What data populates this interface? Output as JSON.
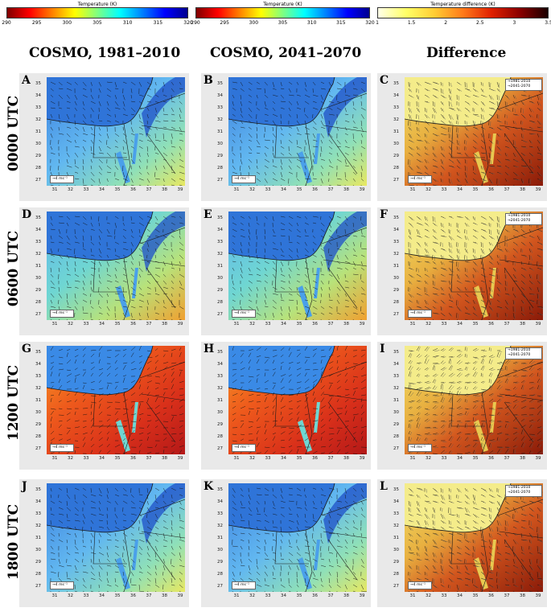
{
  "colorbars": [
    {
      "title": "Temperature (K)",
      "ticks": [
        "290",
        "295",
        "300",
        "305",
        "310",
        "315",
        "320"
      ],
      "palette": "jet"
    },
    {
      "title": "Temperature (K)",
      "ticks": [
        "290",
        "295",
        "300",
        "305",
        "310",
        "315",
        "320"
      ],
      "palette": "jet"
    },
    {
      "title": "Temperature difference (K)",
      "ticks": [
        "1",
        "1.5",
        "2",
        "2.5",
        "3",
        "3.5"
      ],
      "palette": "hot"
    }
  ],
  "columns": [
    {
      "title": "COSMO, 1981–2010"
    },
    {
      "title": "COSMO, 2041–2070"
    },
    {
      "title": "Difference"
    }
  ],
  "rows": [
    {
      "title": "0000 UTC"
    },
    {
      "title": "0600 UTC"
    },
    {
      "title": "1200 UTC"
    },
    {
      "title": "1800 UTC"
    }
  ],
  "panels": [
    {
      "label": "A"
    },
    {
      "label": "B"
    },
    {
      "label": "C"
    },
    {
      "label": "D"
    },
    {
      "label": "E"
    },
    {
      "label": "F"
    },
    {
      "label": "G"
    },
    {
      "label": "H"
    },
    {
      "label": "I"
    },
    {
      "label": "J"
    },
    {
      "label": "K"
    },
    {
      "label": "L"
    }
  ],
  "lat_labels": [
    "35",
    "34",
    "33",
    "32",
    "31",
    "30",
    "29",
    "28",
    "27"
  ],
  "lon_labels": [
    "31",
    "32",
    "33",
    "34",
    "35",
    "36",
    "37",
    "38",
    "39"
  ],
  "scale_label": "→4 ms⁻¹",
  "legend_labels": [
    "1981-2010",
    "2041-2070"
  ],
  "colors": {
    "sea_night": "#2f74d8",
    "sea_day": "#3a8ae6",
    "border": "#1a1a1a"
  }
}
